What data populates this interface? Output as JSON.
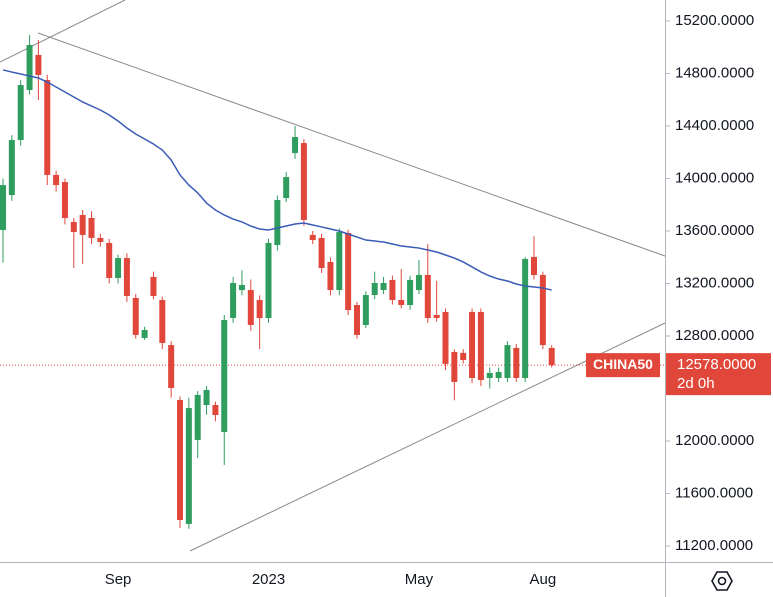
{
  "chart_data": {
    "type": "candlestick",
    "symbol": "CHINA50",
    "categories": [
      null,
      null,
      null,
      null,
      null,
      null,
      null,
      null,
      null,
      null,
      null,
      null,
      null,
      "Sep",
      null,
      null,
      null,
      null,
      null,
      null,
      null,
      null,
      null,
      null,
      null,
      null,
      null,
      null,
      null,
      null,
      "2023",
      null,
      null,
      null,
      null,
      null,
      null,
      null,
      null,
      null,
      null,
      null,
      null,
      null,
      null,
      null,
      null,
      "May",
      null,
      null,
      null,
      null,
      null,
      null,
      null,
      null,
      null,
      null,
      null,
      null,
      null,
      "Aug",
      null
    ],
    "open": [
      13608,
      13874,
      14293,
      14674,
      14941,
      14750,
      14027,
      13973,
      13669,
      13722,
      13699,
      13547,
      13509,
      13242,
      13394,
      13090,
      12785,
      13250,
      13074,
      12731,
      12312,
      11368,
      12008,
      12274,
      12274,
      12069,
      12937,
      13150,
      13150,
      13074,
      12937,
      13493,
      13851,
      14194,
      14270,
      13570,
      13547,
      13364,
      13150,
      13585,
      13036,
      12884,
      13112,
      13150,
      13227,
      13074,
      13036,
      13150,
      13265,
      12960,
      12983,
      12678,
      12671,
      12983,
      12983,
      12480,
      12480,
      12480,
      12709,
      12480,
      13402,
      13265,
      12709
    ],
    "high": [
      14000,
      14330,
      14750,
      15093,
      15055,
      14790,
      14060,
      14000,
      13700,
      13760,
      13750,
      13580,
      13540,
      13420,
      13430,
      13120,
      12870,
      13290,
      13100,
      12760,
      12340,
      12330,
      12380,
      12420,
      12300,
      12960,
      13250,
      13300,
      13230,
      13110,
      13540,
      13870,
      14050,
      14400,
      14300,
      13600,
      13580,
      13400,
      13620,
      13610,
      13060,
      13140,
      13290,
      13250,
      13260,
      13310,
      13260,
      13380,
      13500,
      13220,
      13010,
      12700,
      12700,
      13010,
      13010,
      12560,
      12560,
      12760,
      12740,
      13400,
      13560,
      13290,
      12730
    ],
    "low": [
      13360,
      13830,
      14250,
      14640,
      14598,
      13950,
      13900,
      13650,
      13318,
      13350,
      13500,
      13480,
      13200,
      13200,
      13060,
      12780,
      12770,
      13080,
      12700,
      12330,
      11337,
      11330,
      11870,
      12200,
      12150,
      11817,
      12900,
      13110,
      12840,
      12700,
      12900,
      13450,
      13820,
      14150,
      13640,
      13500,
      13280,
      13110,
      13110,
      12960,
      12780,
      12860,
      13080,
      13120,
      13040,
      13010,
      13000,
      13120,
      12900,
      12910,
      12540,
      12310,
      12590,
      12440,
      12420,
      12400,
      12450,
      12450,
      12450,
      12450,
      13230,
      12700,
      12560
    ],
    "close": [
      13950,
      14293,
      14712,
      15017,
      14789,
      14027,
      13950,
      13699,
      13592,
      13570,
      13547,
      13516,
      13242,
      13394,
      13105,
      12808,
      12846,
      13105,
      12747,
      12404,
      11398,
      12251,
      12351,
      12389,
      12198,
      12922,
      13204,
      13189,
      12884,
      12937,
      13509,
      13836,
      14011,
      14316,
      13684,
      13531,
      13318,
      13150,
      13592,
      12998,
      12808,
      13112,
      13204,
      13204,
      13074,
      13036,
      13227,
      13265,
      12937,
      12937,
      12587,
      12450,
      12617,
      12480,
      12465,
      12518,
      12526,
      12731,
      12480,
      13387,
      13265,
      12731,
      12578
    ],
    "up_color": "#2f9d5d",
    "down_color": "#e0463a",
    "ma_values": [
      14827,
      14811,
      14796,
      14781,
      14766,
      14735,
      14697,
      14659,
      14621,
      14583,
      14552,
      14522,
      14484,
      14438,
      14385,
      14339,
      14301,
      14263,
      14217,
      14141,
      14027,
      13950,
      13890,
      13813,
      13760,
      13722,
      13691,
      13669,
      13638,
      13615,
      13608,
      13623,
      13638,
      13653,
      13661,
      13646,
      13631,
      13615,
      13600,
      13577,
      13554,
      13531,
      13524,
      13516,
      13501,
      13486,
      13478,
      13470,
      13455,
      13440,
      13417,
      13394,
      13364,
      13326,
      13288,
      13257,
      13234,
      13219,
      13196,
      13181,
      13173,
      13166,
      13150
    ],
    "ma_color": "#3a5bb8",
    "ylim": [
      11078,
      15360
    ],
    "yticks": [
      {
        "value": 15200,
        "label": "15200.0000"
      },
      {
        "value": 14800,
        "label": "14800.0000"
      },
      {
        "value": 14400,
        "label": "14400.0000"
      },
      {
        "value": 14000,
        "label": "14000.0000"
      },
      {
        "value": 13600,
        "label": "13600.0000"
      },
      {
        "value": 13200,
        "label": "13200.0000"
      },
      {
        "value": 12800,
        "label": "12800.0000"
      },
      {
        "value": 12000,
        "label": "12000.0000"
      },
      {
        "value": 11600,
        "label": "11600.0000"
      },
      {
        "value": 11200,
        "label": "11200.0000"
      }
    ],
    "current_price": {
      "value": 12578,
      "label": "12578.0000"
    },
    "countdown": "2d 0h"
  }
}
